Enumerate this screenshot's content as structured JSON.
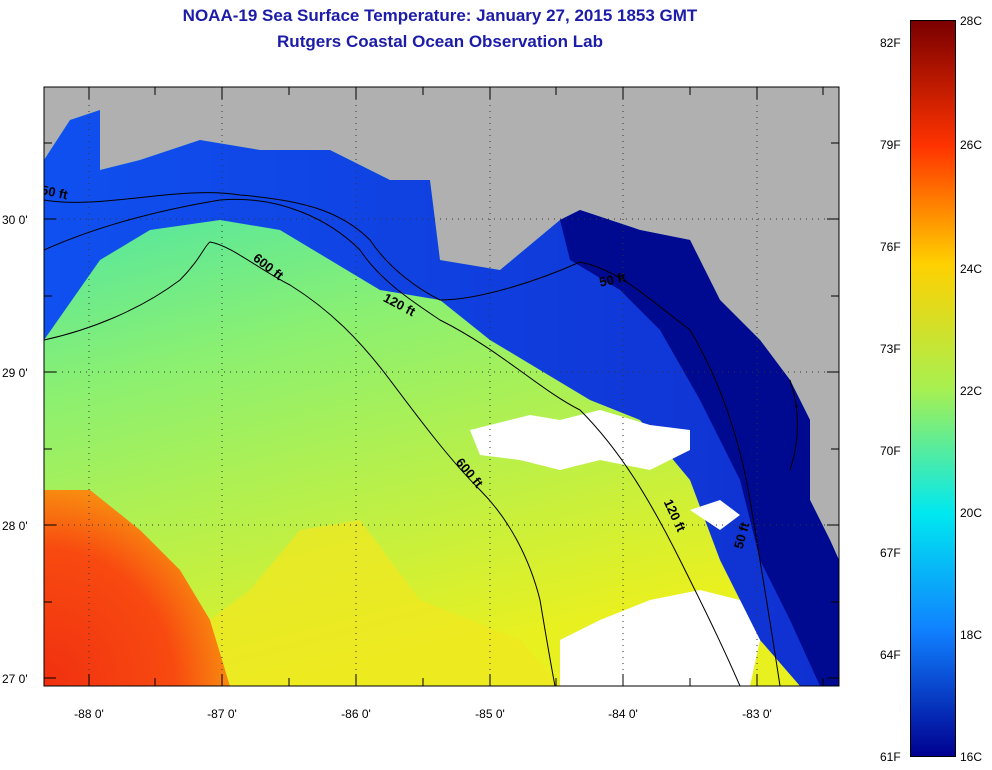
{
  "header": {
    "title": "NOAA-19 Sea Surface Temperature:  January 27, 2015 1853 GMT",
    "subtitle": "Rutgers Coastal Ocean Observation Lab"
  },
  "map": {
    "lat_labels": [
      "30 0'",
      "29 0'",
      "28 0'",
      "27 0'"
    ],
    "lon_labels": [
      "-88 0'",
      "-87 0'",
      "-86 0'",
      "-85 0'",
      "-84 0'",
      "-83 0'"
    ],
    "contours": [
      "50 ft",
      "600 ft",
      "120 ft",
      "50 ft",
      "600 ft",
      "120 ft",
      "50 ft"
    ]
  },
  "colorbar": {
    "fahrenheit": [
      "82F",
      "79F",
      "76F",
      "73F",
      "70F",
      "67F",
      "64F",
      "61F"
    ],
    "celsius": [
      "28C",
      "26C",
      "24C",
      "22C",
      "20C",
      "18C",
      "16C"
    ],
    "colors": [
      "#7a0000",
      "#ff3300",
      "#ffd000",
      "#a8f050",
      "#00e8f0",
      "#1080ff",
      "#000090"
    ]
  }
}
